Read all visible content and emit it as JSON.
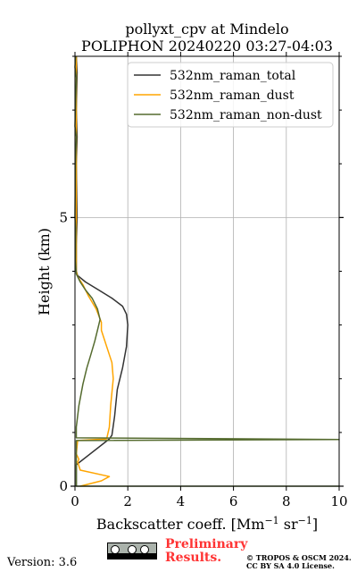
{
  "title_line1": "pollyxt_cpv at Mindelo",
  "title_line2": "POLIPHON 20240220 03:27-04:03",
  "footer": {
    "version": "Version: 3.6",
    "preliminary_line1": "Preliminary",
    "preliminary_line2": "Results.",
    "copyright_line1": "© TROPOS & OSCM 2024.",
    "copyright_line2": "CC BY SA 4.0 License."
  },
  "chart_data": {
    "type": "line",
    "xlabel_main": "Backscatter coeff. [Mm",
    "xlabel_exp1": "−1",
    "xlabel_mid": " sr",
    "xlabel_exp2": "−1",
    "xlabel_end": "]",
    "ylabel": "Height (km)",
    "xlim": [
      0,
      10
    ],
    "ylim": [
      0,
      8
    ],
    "x_ticks": [
      0,
      2,
      4,
      6,
      8,
      10
    ],
    "x_tick_labels": [
      "0",
      "2",
      "4",
      "6",
      "8",
      "10"
    ],
    "y_ticks": [
      0,
      5
    ],
    "y_tick_labels": [
      "0",
      "5"
    ],
    "y_minor_ticks": [
      1,
      2,
      3,
      4,
      6,
      7,
      8
    ],
    "grid": true,
    "legend_position": "top-right",
    "series": [
      {
        "name": "532nm_raman_total",
        "color": "#333333",
        "points": [
          [
            0.05,
            0.0
          ],
          [
            0.05,
            0.4
          ],
          [
            1.3,
            0.88
          ],
          [
            1.4,
            0.95
          ],
          [
            1.5,
            1.3
          ],
          [
            1.6,
            1.8
          ],
          [
            1.8,
            2.2
          ],
          [
            1.95,
            2.6
          ],
          [
            2.0,
            3.0
          ],
          [
            1.95,
            3.2
          ],
          [
            1.8,
            3.35
          ],
          [
            1.4,
            3.5
          ],
          [
            0.9,
            3.65
          ],
          [
            0.4,
            3.8
          ],
          [
            0.1,
            3.92
          ],
          [
            0.05,
            4.0
          ],
          [
            0.05,
            4.5
          ],
          [
            0.08,
            5.0
          ],
          [
            0.05,
            6.0
          ],
          [
            0.08,
            6.5
          ],
          [
            0.05,
            7.0
          ],
          [
            0.08,
            7.7
          ],
          [
            0.05,
            8.0
          ]
        ]
      },
      {
        "name": "532nm_raman_dust",
        "color": "#ffa500",
        "points": [
          [
            0.2,
            0.0
          ],
          [
            1.0,
            0.1
          ],
          [
            1.3,
            0.18
          ],
          [
            0.2,
            0.3
          ],
          [
            0.1,
            0.45
          ],
          [
            0.15,
            0.5
          ],
          [
            0.05,
            0.6
          ],
          [
            0.1,
            0.85
          ],
          [
            1.2,
            0.88
          ],
          [
            1.3,
            1.1
          ],
          [
            1.35,
            1.5
          ],
          [
            1.45,
            2.0
          ],
          [
            1.4,
            2.3
          ],
          [
            1.2,
            2.6
          ],
          [
            1.0,
            2.9
          ],
          [
            1.0,
            3.05
          ],
          [
            0.8,
            3.3
          ],
          [
            0.5,
            3.55
          ],
          [
            0.3,
            3.75
          ],
          [
            0.1,
            3.9
          ],
          [
            0.05,
            4.0
          ],
          [
            0.05,
            5.0
          ],
          [
            0.05,
            6.0
          ],
          [
            0.05,
            7.0
          ],
          [
            0.05,
            8.0
          ]
        ]
      },
      {
        "name": "532nm_raman_non-dust",
        "color": "#556b2f",
        "points": [
          [
            0.05,
            0.0
          ],
          [
            10.0,
            0.0
          ],
          [
            0.05,
            0.0
          ],
          [
            0.05,
            0.85
          ],
          [
            10.0,
            0.87
          ],
          [
            0.05,
            0.9
          ],
          [
            0.05,
            1.1
          ],
          [
            0.15,
            1.5
          ],
          [
            0.3,
            1.9
          ],
          [
            0.45,
            2.2
          ],
          [
            0.6,
            2.45
          ],
          [
            0.75,
            2.7
          ],
          [
            0.85,
            2.9
          ],
          [
            0.95,
            3.1
          ],
          [
            0.85,
            3.3
          ],
          [
            0.65,
            3.5
          ],
          [
            0.4,
            3.65
          ],
          [
            0.2,
            3.8
          ],
          [
            0.05,
            3.95
          ],
          [
            0.02,
            4.2
          ],
          [
            0.03,
            4.8
          ],
          [
            0.0,
            5.0
          ],
          [
            0.02,
            6.0
          ],
          [
            0.05,
            6.5
          ],
          [
            0.0,
            6.7
          ],
          [
            0.02,
            7.0
          ],
          [
            0.05,
            7.6
          ],
          [
            0.0,
            7.8
          ],
          [
            0.03,
            8.0
          ]
        ]
      }
    ]
  }
}
